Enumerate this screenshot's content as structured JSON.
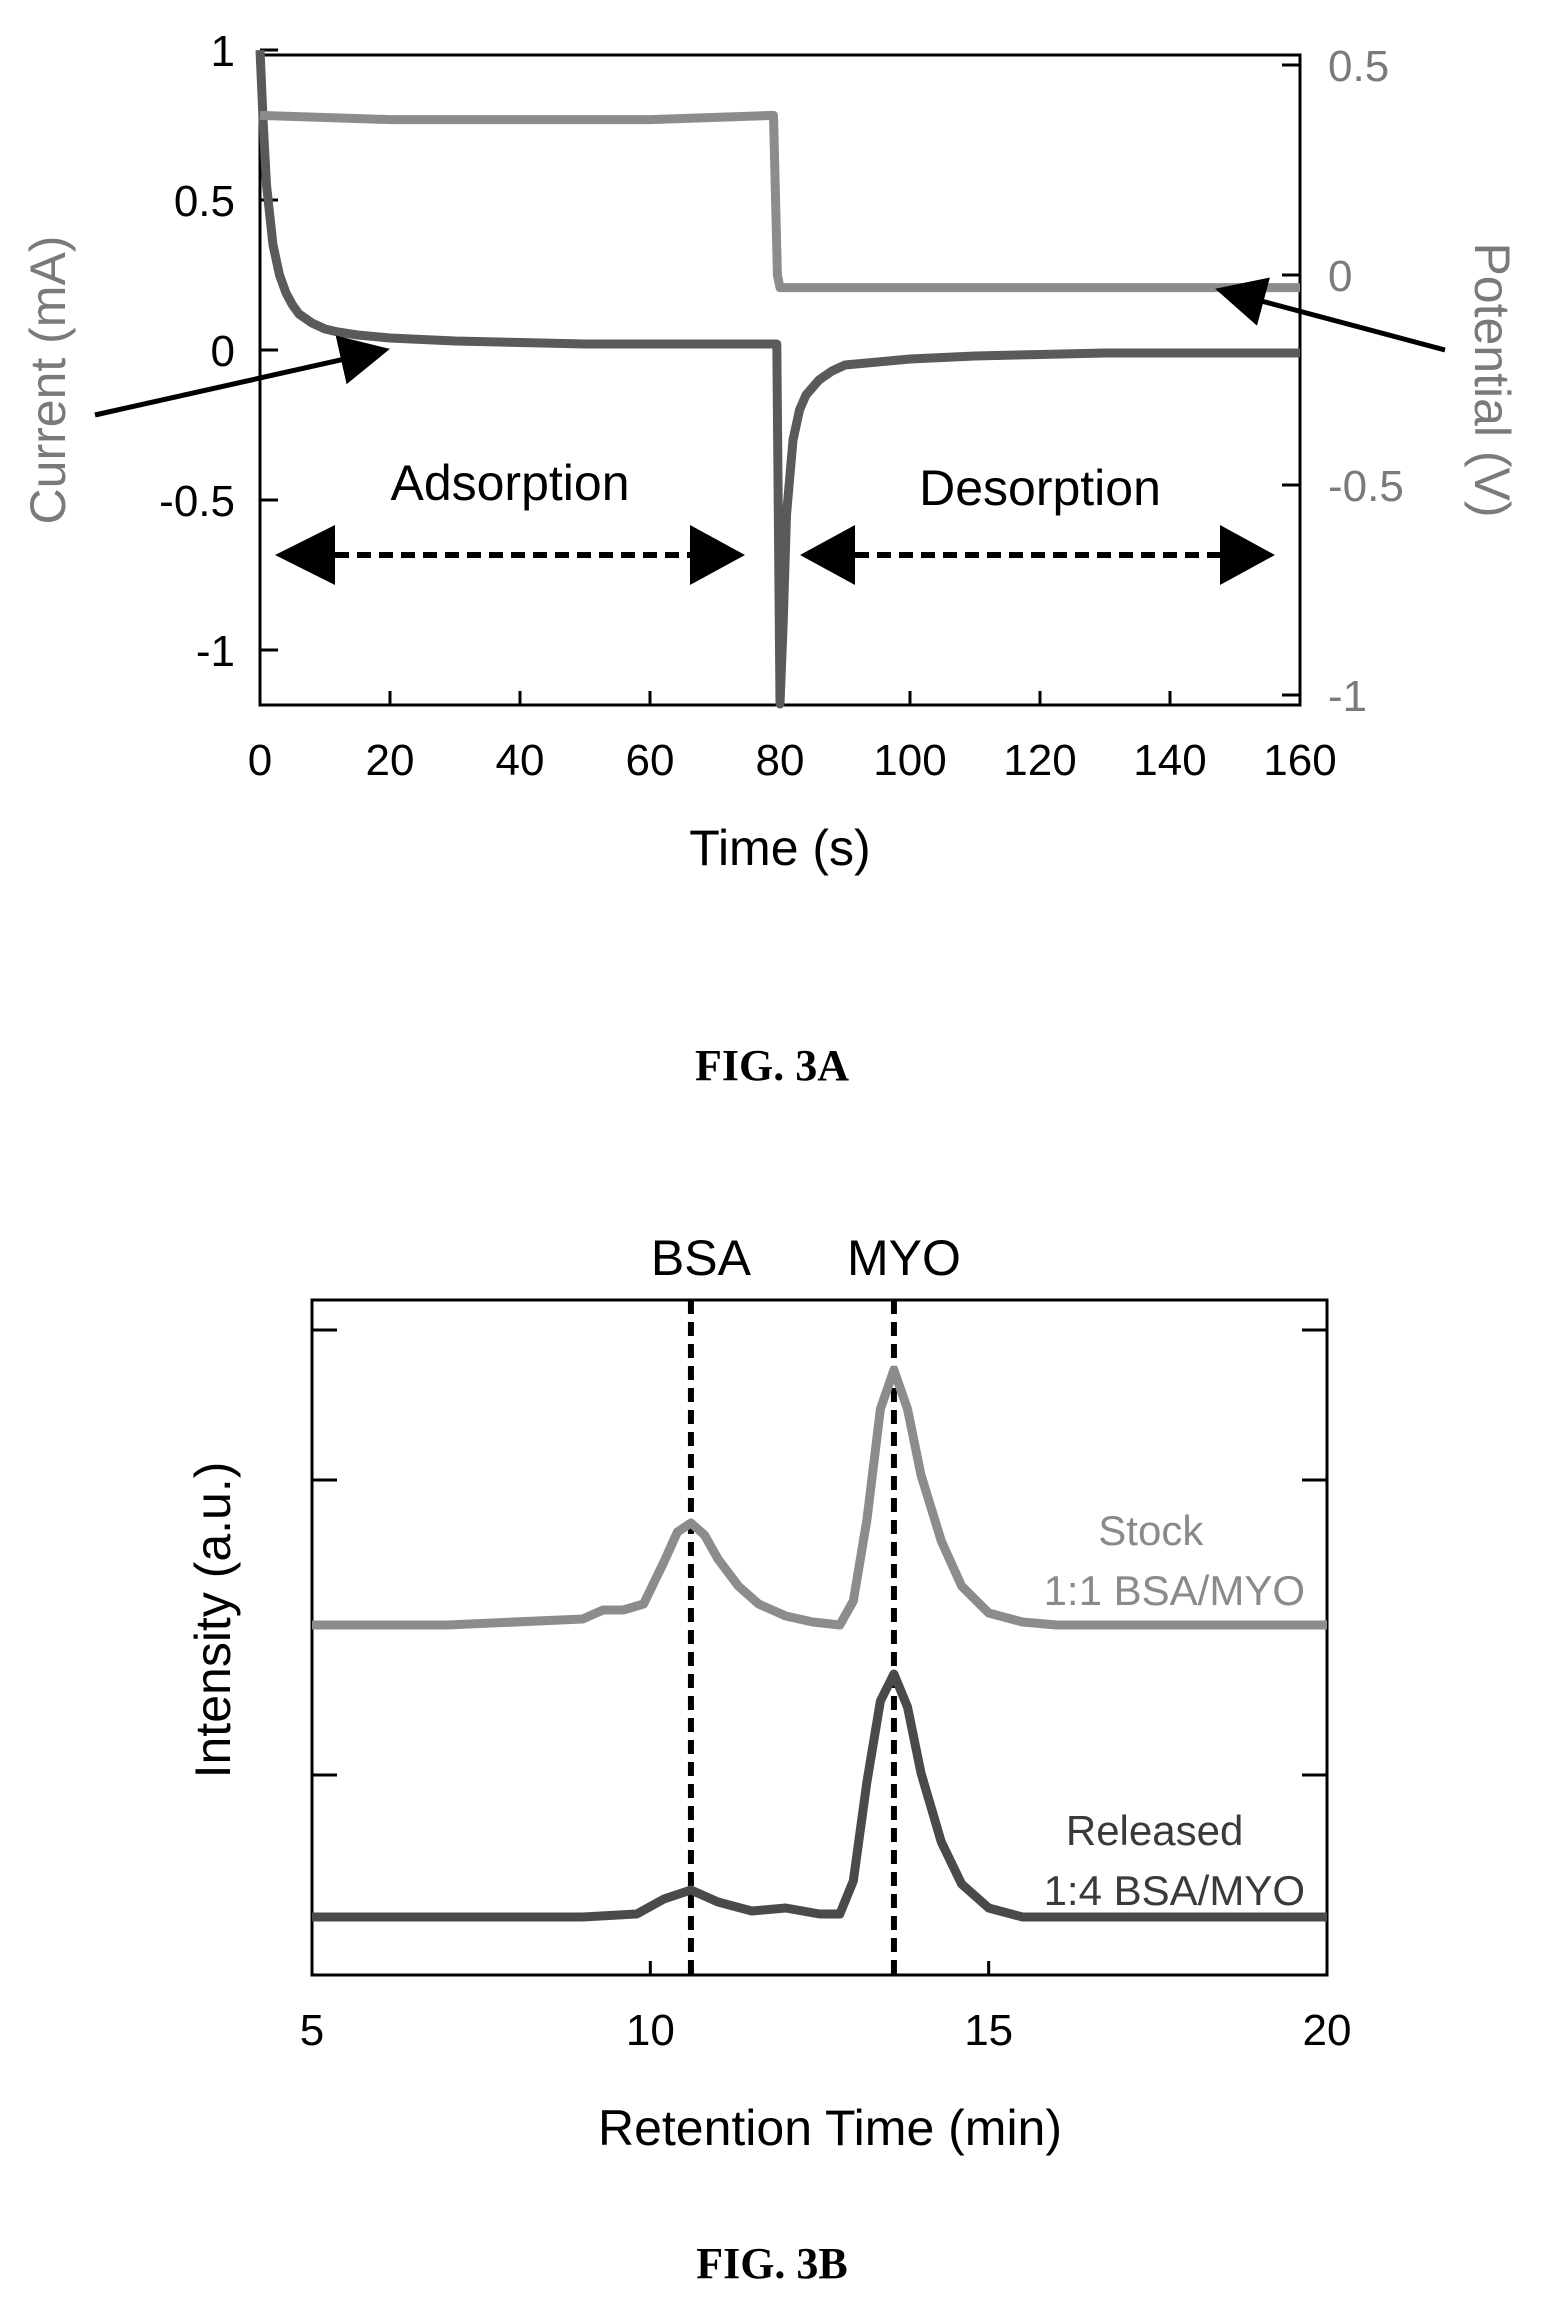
{
  "colors": {
    "current_line": "#5a5a5a",
    "potential_line": "#8c8c8c",
    "stock_line": "#8c8c8c",
    "released_line": "#4a4a4a",
    "axis": "#000000"
  },
  "chart_data": [
    {
      "type": "line",
      "caption": "FIG. 3A",
      "xlabel": "Time (s)",
      "ylabel": "Current (mA)",
      "y2label": "Potential (V)",
      "xlim": [
        0,
        160
      ],
      "ylim": [
        -1.2,
        1.0
      ],
      "y2lim": [
        -1.0,
        0.5
      ],
      "xticks": [
        "0",
        "20",
        "40",
        "60",
        "80",
        "100",
        "120",
        "140",
        "160"
      ],
      "yticks": [
        "1",
        "0.5",
        "0",
        "-0.5",
        "-1"
      ],
      "y2ticks": [
        "0.5",
        "0",
        "-0.5",
        "-1"
      ],
      "annotations": {
        "left_region": "Adsorption",
        "right_region": "Desorption"
      },
      "series": [
        {
          "axis": "left",
          "x": [
            0,
            0.5,
            1,
            2,
            3,
            4,
            5,
            6,
            8,
            10,
            12,
            15,
            20,
            25,
            30,
            40,
            50,
            60,
            70,
            79.5,
            80,
            80.5,
            81,
            82,
            83,
            84,
            86,
            88,
            90,
            95,
            100,
            110,
            120,
            130,
            140,
            150,
            160
          ],
          "values": [
            1.0,
            0.75,
            0.55,
            0.35,
            0.25,
            0.19,
            0.15,
            0.12,
            0.09,
            0.07,
            0.06,
            0.05,
            0.04,
            0.035,
            0.03,
            0.025,
            0.02,
            0.02,
            0.02,
            0.02,
            -1.18,
            -0.9,
            -0.55,
            -0.3,
            -0.2,
            -0.15,
            -0.1,
            -0.07,
            -0.05,
            -0.04,
            -0.03,
            -0.02,
            -0.015,
            -0.01,
            -0.01,
            -0.01,
            -0.01
          ]
        },
        {
          "axis": "right",
          "x": [
            0,
            20,
            40,
            60,
            79,
            79.6,
            80,
            100,
            120,
            140,
            160
          ],
          "values": [
            0.38,
            0.37,
            0.37,
            0.37,
            0.38,
            0.0,
            -0.03,
            -0.03,
            -0.03,
            -0.03,
            -0.03
          ]
        }
      ]
    },
    {
      "type": "line",
      "caption": "FIG. 3B",
      "xlabel": "Retention Time (min)",
      "ylabel": "Intensity (a.u.)",
      "xlim": [
        5,
        20
      ],
      "ylim": [
        0,
        1
      ],
      "xticks": [
        "5",
        "10",
        "15",
        "20"
      ],
      "reference_lines": [
        {
          "label": "BSA",
          "x": 10.6
        },
        {
          "label": "MYO",
          "x": 13.6
        }
      ],
      "series": [
        {
          "name": "Stock\n1:1 BSA/MYO",
          "x": [
            5,
            7,
            9,
            9.3,
            9.6,
            9.9,
            10.2,
            10.4,
            10.6,
            10.8,
            11.0,
            11.3,
            11.6,
            12.0,
            12.4,
            12.8,
            13.0,
            13.2,
            13.4,
            13.6,
            13.8,
            14.0,
            14.3,
            14.6,
            15.0,
            15.5,
            16,
            17,
            18,
            20
          ],
          "values": [
            0.0,
            0.0,
            0.02,
            0.05,
            0.05,
            0.07,
            0.21,
            0.31,
            0.34,
            0.3,
            0.22,
            0.13,
            0.07,
            0.03,
            0.01,
            0.0,
            0.08,
            0.35,
            0.72,
            0.85,
            0.72,
            0.5,
            0.28,
            0.13,
            0.04,
            0.01,
            0.0,
            0.0,
            0.0,
            0.0
          ]
        },
        {
          "name": "Released\n1:4 BSA/MYO",
          "x": [
            5,
            7,
            9,
            9.8,
            10.2,
            10.6,
            11.0,
            11.5,
            12.0,
            12.5,
            12.8,
            13.0,
            13.2,
            13.4,
            13.6,
            13.8,
            14.0,
            14.3,
            14.6,
            15.0,
            15.5,
            16,
            17,
            18,
            20
          ],
          "values": [
            0.0,
            0.0,
            0.0,
            0.01,
            0.06,
            0.09,
            0.05,
            0.02,
            0.03,
            0.01,
            0.01,
            0.12,
            0.45,
            0.72,
            0.81,
            0.7,
            0.48,
            0.25,
            0.11,
            0.03,
            0.0,
            0.0,
            0.0,
            0.0,
            0.0
          ]
        }
      ]
    }
  ]
}
